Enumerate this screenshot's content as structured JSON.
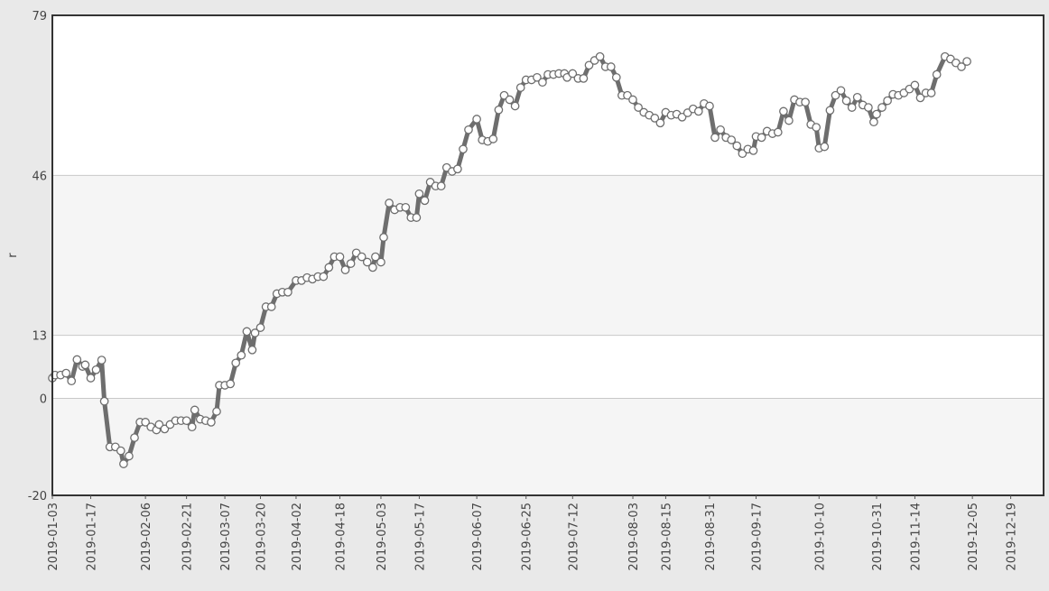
{
  "chart_data": {
    "type": "line",
    "title": "",
    "xlabel": "",
    "ylabel": "r",
    "ylim": [
      -20,
      79
    ],
    "xlim": [
      "2019-01-03",
      "2019-12-31"
    ],
    "y_ticks": [
      -20,
      0,
      13,
      46,
      79
    ],
    "x_ticks": [
      "2019-01-03",
      "2019-01-17",
      "2019-02-06",
      "2019-02-21",
      "2019-03-07",
      "2019-03-20",
      "2019-04-02",
      "2019-04-18",
      "2019-05-03",
      "2019-05-17",
      "2019-06-07",
      "2019-06-25",
      "2019-07-12",
      "2019-08-03",
      "2019-08-15",
      "2019-08-31",
      "2019-09-17",
      "2019-10-10",
      "2019-10-31",
      "2019-11-14",
      "2019-12-05",
      "2019-12-19"
    ],
    "bands": [
      [
        -20,
        0
      ],
      [
        13,
        46
      ]
    ],
    "grid": "horizontal",
    "legend": "none",
    "series": [
      {
        "points": [
          [
            "2019-01-03",
            4.2
          ],
          [
            "2019-01-04",
            4.8
          ],
          [
            "2019-01-06",
            4.8
          ],
          [
            "2019-01-08",
            5.2
          ],
          [
            "2019-01-10",
            3.6
          ],
          [
            "2019-01-12",
            8.0
          ],
          [
            "2019-01-14",
            6.6
          ],
          [
            "2019-01-15",
            6.9
          ],
          [
            "2019-01-17",
            4.2
          ],
          [
            "2019-01-19",
            5.9
          ],
          [
            "2019-01-21",
            7.9
          ],
          [
            "2019-01-22",
            -0.6
          ],
          [
            "2019-01-24",
            -10.0
          ],
          [
            "2019-01-26",
            -10.0
          ],
          [
            "2019-01-28",
            -10.8
          ],
          [
            "2019-01-29",
            -13.5
          ],
          [
            "2019-01-31",
            -11.9
          ],
          [
            "2019-02-02",
            -8.1
          ],
          [
            "2019-02-04",
            -4.9
          ],
          [
            "2019-02-06",
            -4.9
          ],
          [
            "2019-02-08",
            -5.9
          ],
          [
            "2019-02-10",
            -6.5
          ],
          [
            "2019-02-11",
            -5.4
          ],
          [
            "2019-02-13",
            -6.3
          ],
          [
            "2019-02-15",
            -5.4
          ],
          [
            "2019-02-17",
            -4.6
          ],
          [
            "2019-02-19",
            -4.6
          ],
          [
            "2019-02-21",
            -4.6
          ],
          [
            "2019-02-23",
            -5.9
          ],
          [
            "2019-02-24",
            -2.4
          ],
          [
            "2019-02-26",
            -4.3
          ],
          [
            "2019-02-28",
            -4.6
          ],
          [
            "2019-03-02",
            -4.9
          ],
          [
            "2019-03-04",
            -2.7
          ],
          [
            "2019-03-05",
            2.7
          ],
          [
            "2019-03-07",
            2.7
          ],
          [
            "2019-03-09",
            3.0
          ],
          [
            "2019-03-11",
            7.3
          ],
          [
            "2019-03-13",
            8.9
          ],
          [
            "2019-03-15",
            13.8
          ],
          [
            "2019-03-17",
            10.0
          ],
          [
            "2019-03-18",
            13.5
          ],
          [
            "2019-03-20",
            14.6
          ],
          [
            "2019-03-22",
            18.9
          ],
          [
            "2019-03-24",
            18.9
          ],
          [
            "2019-03-26",
            21.6
          ],
          [
            "2019-03-28",
            21.9
          ],
          [
            "2019-03-30",
            21.9
          ],
          [
            "2019-04-02",
            24.3
          ],
          [
            "2019-04-04",
            24.3
          ],
          [
            "2019-04-06",
            24.9
          ],
          [
            "2019-04-08",
            24.6
          ],
          [
            "2019-04-10",
            25.1
          ],
          [
            "2019-04-12",
            25.1
          ],
          [
            "2019-04-14",
            27.0
          ],
          [
            "2019-04-16",
            29.2
          ],
          [
            "2019-04-18",
            29.2
          ],
          [
            "2019-04-20",
            26.5
          ],
          [
            "2019-04-22",
            27.8
          ],
          [
            "2019-04-24",
            30.0
          ],
          [
            "2019-04-26",
            29.2
          ],
          [
            "2019-04-28",
            28.1
          ],
          [
            "2019-04-30",
            27.0
          ],
          [
            "2019-05-01",
            29.2
          ],
          [
            "2019-05-03",
            28.1
          ],
          [
            "2019-05-04",
            33.2
          ],
          [
            "2019-05-06",
            40.3
          ],
          [
            "2019-05-08",
            38.9
          ],
          [
            "2019-05-10",
            39.4
          ],
          [
            "2019-05-12",
            39.4
          ],
          [
            "2019-05-14",
            37.3
          ],
          [
            "2019-05-16",
            37.3
          ],
          [
            "2019-05-17",
            42.2
          ],
          [
            "2019-05-19",
            40.8
          ],
          [
            "2019-05-21",
            44.6
          ],
          [
            "2019-05-23",
            43.8
          ],
          [
            "2019-05-25",
            43.8
          ],
          [
            "2019-05-27",
            47.6
          ],
          [
            "2019-05-29",
            46.8
          ],
          [
            "2019-05-31",
            47.3
          ],
          [
            "2019-06-02",
            51.4
          ],
          [
            "2019-06-04",
            55.4
          ],
          [
            "2019-06-07",
            57.6
          ],
          [
            "2019-06-09",
            53.3
          ],
          [
            "2019-06-11",
            53.0
          ],
          [
            "2019-06-13",
            53.5
          ],
          [
            "2019-06-15",
            59.5
          ],
          [
            "2019-06-17",
            62.5
          ],
          [
            "2019-06-19",
            61.6
          ],
          [
            "2019-06-21",
            60.3
          ],
          [
            "2019-06-23",
            64.1
          ],
          [
            "2019-06-25",
            65.7
          ],
          [
            "2019-06-27",
            65.7
          ],
          [
            "2019-06-29",
            66.2
          ],
          [
            "2019-07-01",
            65.2
          ],
          [
            "2019-07-03",
            66.8
          ],
          [
            "2019-07-05",
            66.8
          ],
          [
            "2019-07-07",
            67.0
          ],
          [
            "2019-07-09",
            67.0
          ],
          [
            "2019-07-10",
            66.2
          ],
          [
            "2019-07-12",
            67.0
          ],
          [
            "2019-07-14",
            66.0
          ],
          [
            "2019-07-16",
            66.0
          ],
          [
            "2019-07-18",
            68.7
          ],
          [
            "2019-07-20",
            69.7
          ],
          [
            "2019-07-22",
            70.5
          ],
          [
            "2019-07-24",
            68.4
          ],
          [
            "2019-07-26",
            68.4
          ],
          [
            "2019-07-28",
            66.2
          ],
          [
            "2019-07-30",
            62.5
          ],
          [
            "2019-08-01",
            62.5
          ],
          [
            "2019-08-03",
            61.6
          ],
          [
            "2019-08-05",
            60.0
          ],
          [
            "2019-08-07",
            59.0
          ],
          [
            "2019-08-09",
            58.4
          ],
          [
            "2019-08-11",
            57.8
          ],
          [
            "2019-08-13",
            56.8
          ],
          [
            "2019-08-15",
            59.0
          ],
          [
            "2019-08-17",
            58.4
          ],
          [
            "2019-08-19",
            58.6
          ],
          [
            "2019-08-21",
            58.0
          ],
          [
            "2019-08-23",
            58.9
          ],
          [
            "2019-08-25",
            59.7
          ],
          [
            "2019-08-27",
            59.2
          ],
          [
            "2019-08-29",
            60.8
          ],
          [
            "2019-08-31",
            60.3
          ],
          [
            "2019-09-02",
            53.8
          ],
          [
            "2019-09-04",
            55.4
          ],
          [
            "2019-09-06",
            53.8
          ],
          [
            "2019-09-08",
            53.3
          ],
          [
            "2019-09-10",
            52.1
          ],
          [
            "2019-09-12",
            50.5
          ],
          [
            "2019-09-14",
            51.4
          ],
          [
            "2019-09-16",
            51.1
          ],
          [
            "2019-09-17",
            54.0
          ],
          [
            "2019-09-19",
            53.8
          ],
          [
            "2019-09-21",
            55.1
          ],
          [
            "2019-09-23",
            54.6
          ],
          [
            "2019-09-25",
            54.9
          ],
          [
            "2019-09-27",
            59.2
          ],
          [
            "2019-09-29",
            57.3
          ],
          [
            "2019-10-01",
            61.6
          ],
          [
            "2019-10-03",
            61.1
          ],
          [
            "2019-10-05",
            61.1
          ],
          [
            "2019-10-07",
            56.5
          ],
          [
            "2019-10-09",
            55.9
          ],
          [
            "2019-10-10",
            51.6
          ],
          [
            "2019-10-12",
            51.9
          ],
          [
            "2019-10-14",
            59.4
          ],
          [
            "2019-10-16",
            62.5
          ],
          [
            "2019-10-18",
            63.5
          ],
          [
            "2019-10-20",
            61.4
          ],
          [
            "2019-10-22",
            60.0
          ],
          [
            "2019-10-24",
            62.1
          ],
          [
            "2019-10-26",
            60.5
          ],
          [
            "2019-10-28",
            60.0
          ],
          [
            "2019-10-30",
            57.0
          ],
          [
            "2019-10-31",
            58.6
          ],
          [
            "2019-11-02",
            60.0
          ],
          [
            "2019-11-04",
            61.4
          ],
          [
            "2019-11-06",
            62.7
          ],
          [
            "2019-11-08",
            62.5
          ],
          [
            "2019-11-10",
            63.0
          ],
          [
            "2019-11-12",
            63.8
          ],
          [
            "2019-11-14",
            64.6
          ],
          [
            "2019-11-16",
            62.0
          ],
          [
            "2019-11-18",
            63.0
          ],
          [
            "2019-11-20",
            63.0
          ],
          [
            "2019-11-22",
            66.8
          ],
          [
            "2019-11-25",
            70.5
          ],
          [
            "2019-11-27",
            70.0
          ],
          [
            "2019-11-29",
            69.2
          ],
          [
            "2019-12-01",
            68.4
          ],
          [
            "2019-12-03",
            69.5
          ]
        ]
      }
    ]
  }
}
